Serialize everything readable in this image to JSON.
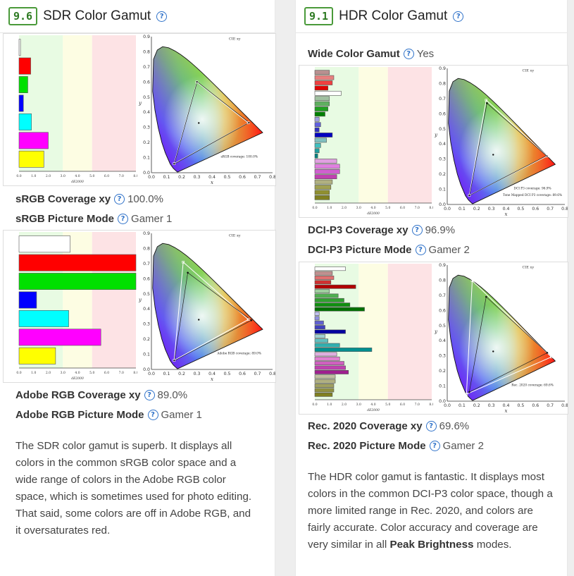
{
  "sdr": {
    "score": "9.6",
    "title": "SDR Color Gamut",
    "srgb_coverage_label": "sRGB Coverage xy",
    "srgb_coverage_value": "100.0%",
    "srgb_mode_label": "sRGB Picture Mode",
    "srgb_mode_value": "Gamer 1",
    "adobe_coverage_label": "Adobe RGB Coverage xy",
    "adobe_coverage_value": "89.0%",
    "adobe_mode_label": "Adobe RGB Picture Mode",
    "adobe_mode_value": "Gamer 1",
    "description": "The SDR color gamut is superb. It displays all colors in the common sRGB color space and a wide range of colors in the Adobe RGB color space, which is sometimes used for photo editing. That said, some colors are off in Adobe RGB, and it oversaturates red."
  },
  "hdr": {
    "score": "9.1",
    "title": "HDR Color Gamut",
    "wcg_label": "Wide Color Gamut",
    "wcg_value": "Yes",
    "p3_coverage_label": "DCI-P3 Coverage xy",
    "p3_coverage_value": "96.9%",
    "p3_mode_label": "DCI-P3 Picture Mode",
    "p3_mode_value": "Gamer 2",
    "rec_coverage_label": "Rec. 2020 Coverage xy",
    "rec_coverage_value": "69.6%",
    "rec_mode_label": "Rec. 2020 Picture Mode",
    "rec_mode_value": "Gamer 2",
    "description_pre": "The HDR color gamut is fantastic. It displays most colors in the common DCI-P3 color space, though a more limited range in Rec. 2020, and colors are fairly accurate. Color accuracy and coverage are very similar in all ",
    "description_bold": "Peak Brightness",
    "description_post": " modes."
  },
  "help_glyph": "?",
  "colors": {
    "score_border": "#4a9a3a",
    "help_icon": "#2f72c9",
    "zone_good": "#e8fbe3",
    "zone_ok": "#fdfde3",
    "zone_bad": "#fde3e5"
  },
  "chart_text": {
    "cie_title": "CIE xy",
    "x_label": "x",
    "y_label": "y",
    "de_label": "dE2000",
    "cie_ticks": [
      "0.0",
      "0.1",
      "0.2",
      "0.3",
      "0.4",
      "0.5",
      "0.6",
      "0.7",
      "0.8",
      "0.9"
    ],
    "de_ticks": [
      "0.0",
      "1.0",
      "2.0",
      "3.0",
      "4.0",
      "5.0",
      "6.0",
      "7.0",
      "8.0"
    ]
  },
  "chart_data": [
    {
      "type": "bar",
      "id": "sdr-srgb-de",
      "xlabel": "dE2000",
      "xlim": [
        0,
        8
      ],
      "bars": [
        {
          "value": 0.1,
          "color": "#ffffff"
        },
        {
          "value": 0.8,
          "color": "#ff0000"
        },
        {
          "value": 0.6,
          "color": "#00e000"
        },
        {
          "value": 0.3,
          "color": "#0000ff"
        },
        {
          "value": 0.85,
          "color": "#00ffff"
        },
        {
          "value": 2.0,
          "color": "#ff00ff"
        },
        {
          "value": 1.7,
          "color": "#ffff00"
        }
      ]
    },
    {
      "type": "scatter",
      "id": "sdr-srgb-cie",
      "title": "CIE xy",
      "xlabel": "x",
      "ylabel": "y",
      "xlim": [
        0,
        0.8
      ],
      "ylim": [
        0,
        0.9
      ],
      "annotation": "sRGB coverage: 100.0%",
      "target": [
        [
          0.64,
          0.33
        ],
        [
          0.3,
          0.6
        ],
        [
          0.15,
          0.06
        ]
      ],
      "measured": [
        [
          0.645,
          0.332
        ],
        [
          0.302,
          0.602
        ],
        [
          0.151,
          0.058
        ]
      ]
    },
    {
      "type": "bar",
      "id": "sdr-adobe-de",
      "xlabel": "dE2000",
      "xlim": [
        0,
        8
      ],
      "bars": [
        {
          "value": 3.5,
          "color": "#ffffff"
        },
        {
          "value": 8.0,
          "color": "#ff0000"
        },
        {
          "value": 8.0,
          "color": "#00e000"
        },
        {
          "value": 1.2,
          "color": "#0000ff"
        },
        {
          "value": 3.4,
          "color": "#00ffff"
        },
        {
          "value": 5.6,
          "color": "#ff00ff"
        },
        {
          "value": 2.5,
          "color": "#ffff00"
        }
      ]
    },
    {
      "type": "scatter",
      "id": "sdr-adobe-cie",
      "title": "CIE xy",
      "xlabel": "x",
      "ylabel": "y",
      "xlim": [
        0,
        0.8
      ],
      "ylim": [
        0,
        0.9
      ],
      "annotation": "Adobe RGB coverage: 89.0%",
      "target": [
        [
          0.64,
          0.33
        ],
        [
          0.21,
          0.71
        ],
        [
          0.15,
          0.06
        ]
      ],
      "measured": [
        [
          0.66,
          0.325
        ],
        [
          0.24,
          0.64
        ],
        [
          0.152,
          0.058
        ]
      ]
    },
    {
      "type": "bar",
      "id": "hdr-p3-de",
      "xlabel": "dE2000",
      "xlim": [
        0,
        8
      ],
      "bars": [
        {
          "value": 1.0,
          "color": "#b89090"
        },
        {
          "value": 1.3,
          "color": "#e8807f"
        },
        {
          "value": 1.2,
          "color": "#f04040"
        },
        {
          "value": 0.9,
          "color": "#e00000"
        },
        {
          "value": 1.8,
          "color": "#ffffff"
        },
        {
          "value": 1.0,
          "color": "#a0c0a0"
        },
        {
          "value": 1.0,
          "color": "#60b060"
        },
        {
          "value": 0.9,
          "color": "#20a020"
        },
        {
          "value": 0.7,
          "color": "#008000"
        },
        {
          "value": 0.3,
          "color": "#a0a0e0"
        },
        {
          "value": 0.4,
          "color": "#6060e0"
        },
        {
          "value": 0.3,
          "color": "#3030c0"
        },
        {
          "value": 1.2,
          "color": "#0000c0"
        },
        {
          "value": 0.8,
          "color": "#80c0c0"
        },
        {
          "value": 0.4,
          "color": "#40c0c0"
        },
        {
          "value": 0.3,
          "color": "#20a0a0"
        },
        {
          "value": 0.2,
          "color": "#008080"
        },
        {
          "value": 1.5,
          "color": "#e0a0e0"
        },
        {
          "value": 1.7,
          "color": "#e080e0"
        },
        {
          "value": 1.7,
          "color": "#d060d0"
        },
        {
          "value": 1.5,
          "color": "#c040b0"
        },
        {
          "value": 1.2,
          "color": "#b0b080"
        },
        {
          "value": 1.1,
          "color": "#a0a050"
        },
        {
          "value": 1.0,
          "color": "#909030"
        },
        {
          "value": 1.0,
          "color": "#808020"
        }
      ]
    },
    {
      "type": "scatter",
      "id": "hdr-p3-cie",
      "title": "CIE xy",
      "xlabel": "x",
      "ylabel": "y",
      "xlim": [
        0,
        0.8
      ],
      "ylim": [
        0,
        0.9
      ],
      "annotation": "DCI P3 coverage: 96.9%",
      "annotation2": "Tone Mapped DCI P3 coverage: 89.6%",
      "target": [
        [
          0.68,
          0.32
        ],
        [
          0.265,
          0.69
        ],
        [
          0.15,
          0.06
        ]
      ],
      "measured": [
        [
          0.675,
          0.322
        ],
        [
          0.27,
          0.67
        ],
        [
          0.152,
          0.06
        ]
      ]
    },
    {
      "type": "bar",
      "id": "hdr-rec-de",
      "xlabel": "dE2000",
      "xlim": [
        0,
        8
      ],
      "bars": [
        {
          "value": 2.1,
          "color": "#ffffff"
        },
        {
          "value": 1.2,
          "color": "#c09090"
        },
        {
          "value": 1.3,
          "color": "#e07070"
        },
        {
          "value": 1.1,
          "color": "#d03030"
        },
        {
          "value": 2.8,
          "color": "#b00000"
        },
        {
          "value": 1.0,
          "color": "#a0d0a0"
        },
        {
          "value": 1.6,
          "color": "#50b050"
        },
        {
          "value": 2.0,
          "color": "#30a030"
        },
        {
          "value": 2.4,
          "color": "#109010"
        },
        {
          "value": 3.4,
          "color": "#007000"
        },
        {
          "value": 0.3,
          "color": "#c0c0f0"
        },
        {
          "value": 0.3,
          "color": "#9090e0"
        },
        {
          "value": 0.6,
          "color": "#6060d0"
        },
        {
          "value": 0.7,
          "color": "#4040c0"
        },
        {
          "value": 2.1,
          "color": "#0000a0"
        },
        {
          "value": 0.7,
          "color": "#a0d0d0"
        },
        {
          "value": 0.9,
          "color": "#60c0c0"
        },
        {
          "value": 1.7,
          "color": "#30b0b0"
        },
        {
          "value": 3.9,
          "color": "#009090"
        },
        {
          "value": 1.5,
          "color": "#e0b0e0"
        },
        {
          "value": 1.7,
          "color": "#e080d0"
        },
        {
          "value": 2.0,
          "color": "#d060c0"
        },
        {
          "value": 2.1,
          "color": "#c040b0"
        },
        {
          "value": 2.3,
          "color": "#a02090"
        },
        {
          "value": 1.4,
          "color": "#c0c0a0"
        },
        {
          "value": 1.4,
          "color": "#b0b080"
        },
        {
          "value": 1.3,
          "color": "#a0a060"
        },
        {
          "value": 1.3,
          "color": "#909040"
        },
        {
          "value": 1.2,
          "color": "#808020"
        }
      ]
    },
    {
      "type": "scatter",
      "id": "hdr-rec-cie",
      "title": "CIE xy",
      "xlabel": "x",
      "ylabel": "y",
      "xlim": [
        0,
        0.8
      ],
      "ylim": [
        0,
        0.9
      ],
      "annotation": "Rec. 2020 coverage: 69.6%",
      "target": [
        [
          0.708,
          0.292
        ],
        [
          0.17,
          0.797
        ],
        [
          0.131,
          0.046
        ]
      ],
      "measured": [
        [
          0.68,
          0.32
        ],
        [
          0.265,
          0.69
        ],
        [
          0.15,
          0.06
        ]
      ]
    }
  ]
}
